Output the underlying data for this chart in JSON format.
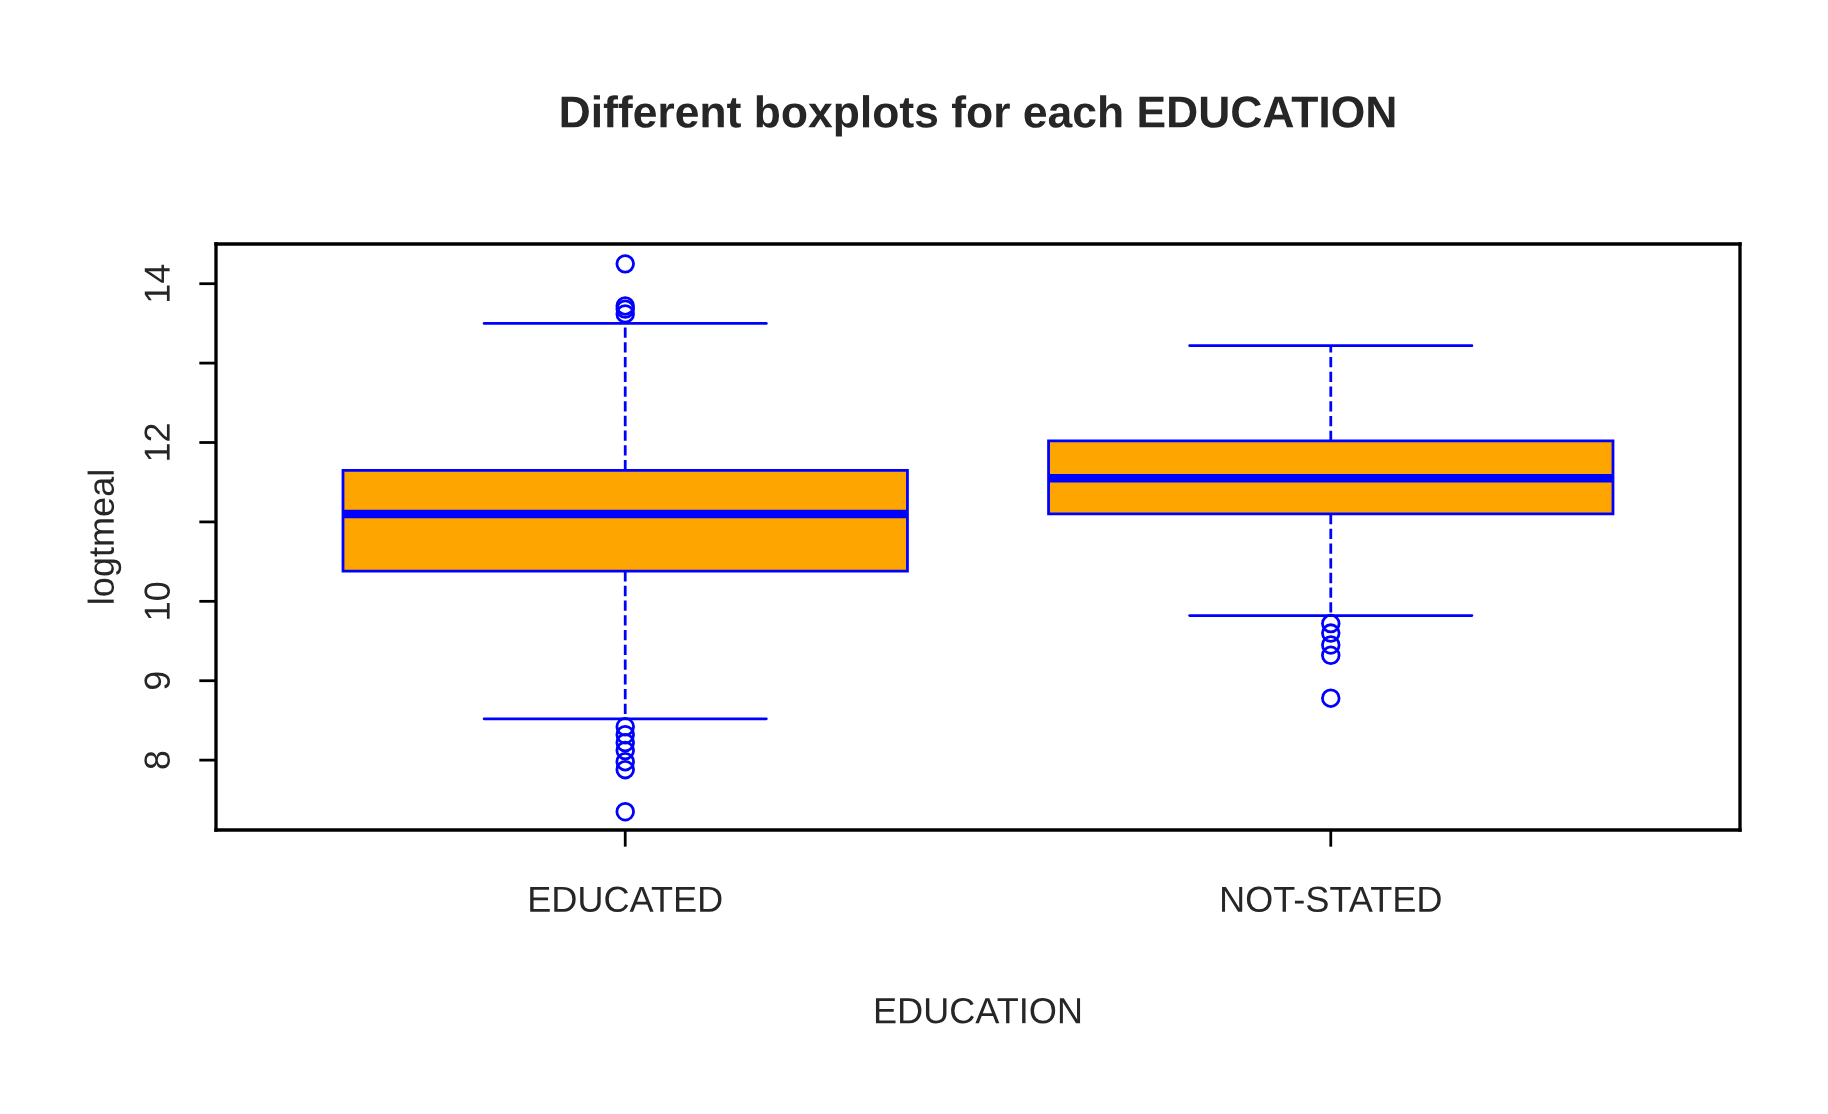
{
  "chart_data": {
    "type": "box",
    "title": "Different boxplots for each EDUCATION",
    "xlabel": "EDUCATION",
    "ylabel": "logtmeal",
    "categories": [
      "EDUCATED",
      "NOT-STATED"
    ],
    "color": "#ffa500",
    "boxes": [
      {
        "low": 8.52,
        "q1": 10.38,
        "median": 11.1,
        "q3": 11.65,
        "high": 13.5,
        "outliers": [
          14.25,
          13.72,
          13.68,
          13.62,
          8.42,
          8.32,
          8.22,
          8.12,
          7.98,
          7.88,
          7.35
        ]
      },
      {
        "low": 9.82,
        "q1": 11.1,
        "median": 11.55,
        "q3": 12.02,
        "high": 13.22,
        "outliers": [
          9.72,
          9.6,
          9.45,
          9.32,
          8.78
        ]
      }
    ],
    "ylim": [
      7.12,
      14.5
    ],
    "yticks": [
      8,
      9,
      10,
      {
        "value": 11,
        "label": null
      },
      12,
      {
        "value": 13,
        "label": null
      },
      14
    ],
    "grid": false,
    "legend": false
  }
}
